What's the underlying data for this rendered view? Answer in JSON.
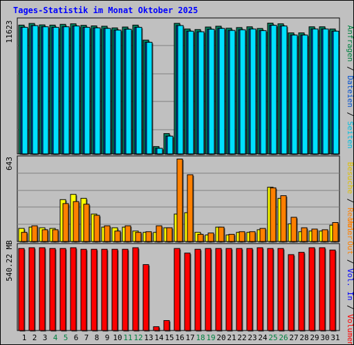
{
  "title": "Tages-Statistik im Monat Oktober 2025",
  "chart_data": [
    {
      "type": "bar",
      "panel": "top",
      "y_label": "11623",
      "legend": [
        "Anfragen",
        "Dateien",
        "Seiten"
      ],
      "legend_colors": {
        "Anfragen": "#008040",
        "Dateien": "#0080ff",
        "Seiten": "#00e0ff"
      },
      "categories": [
        "1",
        "2",
        "3",
        "4",
        "5",
        "6",
        "7",
        "8",
        "9",
        "10",
        "11",
        "12",
        "13",
        "14",
        "15",
        "16",
        "17",
        "18",
        "19",
        "20",
        "21",
        "22",
        "23",
        "24",
        "25",
        "26",
        "27",
        "28",
        "29",
        "30",
        "31"
      ],
      "series": [
        {
          "name": "Anfragen",
          "color": "#008060",
          "values": [
            11600,
            11750,
            11620,
            11600,
            11670,
            11720,
            11580,
            11530,
            11500,
            11350,
            11430,
            11600,
            10250,
            660,
            1830,
            11760,
            11250,
            11200,
            11430,
            11500,
            11320,
            11380,
            11450,
            11300,
            11780,
            11720,
            10900,
            10900,
            11450,
            11450,
            11250
          ]
        },
        {
          "name": "Dateien",
          "color": "#0050d0",
          "values": [
            11400,
            11550,
            11450,
            11400,
            11450,
            11520,
            11400,
            11350,
            11300,
            11150,
            11230,
            11400,
            10050,
            500,
            1600,
            11560,
            11050,
            11000,
            11230,
            11300,
            11120,
            11180,
            11250,
            11100,
            11580,
            11520,
            10700,
            10700,
            11250,
            11250,
            11050
          ]
        },
        {
          "name": "Seiten",
          "color": "#00e0ff",
          "values": [
            11400,
            11550,
            11450,
            11400,
            11450,
            11520,
            11400,
            11350,
            11300,
            11150,
            11230,
            11400,
            10050,
            500,
            1600,
            11560,
            11050,
            11000,
            11230,
            11300,
            11120,
            11180,
            11250,
            11100,
            11580,
            11520,
            10700,
            10700,
            11250,
            11250,
            11050
          ]
        }
      ]
    },
    {
      "type": "bar",
      "panel": "middle",
      "y_label": "643",
      "legend": [
        "Besuche",
        "Rechner"
      ],
      "legend_colors": {
        "Besuche": "#ffd700",
        "Rechner": "#ff8000"
      },
      "categories": [
        "1",
        "2",
        "3",
        "4",
        "5",
        "6",
        "7",
        "8",
        "9",
        "10",
        "11",
        "12",
        "13",
        "14",
        "15",
        "16",
        "17",
        "18",
        "19",
        "20",
        "21",
        "22",
        "23",
        "24",
        "25",
        "26",
        "27",
        "28",
        "29",
        "30",
        "31"
      ],
      "series": [
        {
          "name": "Besuche",
          "color": "#ffff00",
          "values": [
            100,
            110,
            105,
            100,
            320,
            360,
            330,
            210,
            110,
            105,
            110,
            80,
            70,
            70,
            105,
            210,
            220,
            70,
            50,
            110,
            50,
            70,
            70,
            90,
            415,
            330,
            135,
            75,
            80,
            80,
            125
          ]
        },
        {
          "name": "Rechner",
          "color": "#ff8000",
          "values": [
            70,
            120,
            90,
            90,
            290,
            305,
            285,
            200,
            120,
            80,
            120,
            70,
            75,
            120,
            105,
            630,
            510,
            55,
            65,
            110,
            55,
            75,
            75,
            100,
            410,
            350,
            185,
            105,
            95,
            90,
            145
          ]
        }
      ]
    },
    {
      "type": "bar",
      "panel": "bottom",
      "y_label": "540.22 MB",
      "legend": [
        "Vol. In",
        "Vol. Out",
        "Volumen"
      ],
      "legend_colors": {
        "Vol. In": "#0000ff",
        "Vol. Out": "#ff8000",
        "Volumen": "#ff0000"
      },
      "categories": [
        "1",
        "2",
        "3",
        "4",
        "5",
        "6",
        "7",
        "8",
        "9",
        "10",
        "11",
        "12",
        "13",
        "14",
        "15",
        "16",
        "17",
        "18",
        "19",
        "20",
        "21",
        "22",
        "23",
        "24",
        "25",
        "26",
        "27",
        "28",
        "29",
        "30",
        "31"
      ],
      "series": [
        {
          "name": "Volumen",
          "color": "#ff0000",
          "values": [
            535,
            540,
            540,
            535,
            535,
            540,
            530,
            530,
            530,
            530,
            530,
            540,
            430,
            25,
            65,
            535,
            505,
            530,
            535,
            535,
            535,
            535,
            535,
            540,
            535,
            535,
            495,
            510,
            540,
            540,
            525
          ]
        }
      ]
    }
  ],
  "right_labels": {
    "top": [
      {
        "text": "Anfragen",
        "color": "#008040"
      },
      {
        "text": " / ",
        "color": "#000000"
      },
      {
        "text": "Dateien",
        "color": "#0050d0"
      },
      {
        "text": " / ",
        "color": "#000000"
      },
      {
        "text": "Seiten",
        "color": "#00c0e0"
      }
    ],
    "middle": [
      {
        "text": "Besuche",
        "color": "#e0c000"
      },
      {
        "text": " / ",
        "color": "#000000"
      },
      {
        "text": "Rechner",
        "color": "#ff8000"
      }
    ],
    "bottom": [
      {
        "text": "Vol. Out",
        "color": "#ff8000"
      },
      {
        "text": " / ",
        "color": "#000000"
      },
      {
        "text": "Vol. In",
        "color": "#0000ff"
      },
      {
        "text": " / ",
        "color": "#000000"
      },
      {
        "text": "Volumen",
        "color": "#ff0000"
      }
    ]
  },
  "x_label_colors": {
    "weekday": "#000000",
    "weekend": "#008040"
  },
  "weekend_days": [
    "4",
    "5",
    "11",
    "12",
    "18",
    "19",
    "25",
    "26"
  ],
  "grid_color": "#808080",
  "panel_bg": "#c0c0c0"
}
